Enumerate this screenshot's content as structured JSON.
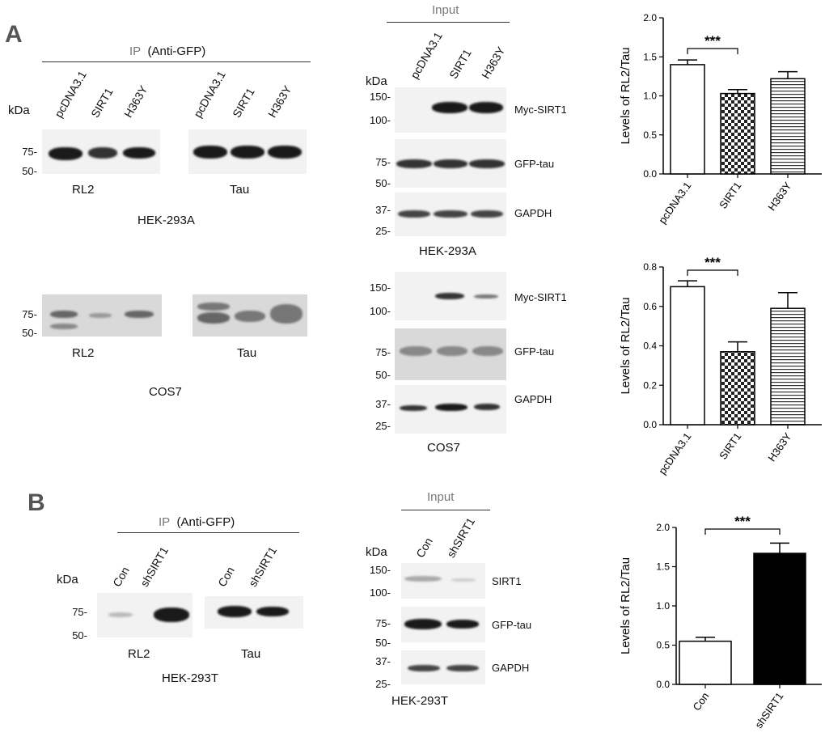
{
  "panel_A": {
    "letter": "A",
    "ip_header": "IP",
    "ip_antibody": "(Anti-GFP)",
    "kda": "kDa",
    "lanes": [
      "pcDNA3.1",
      "SIRT1",
      "H363Y"
    ],
    "blot_rl2": "RL2",
    "blot_tau": "Tau",
    "cell_hek": "HEK-293A",
    "cell_cos": "COS7",
    "mw_75": "75-",
    "mw_50": "50-",
    "input_header": "Input",
    "input_mw": {
      "m150": "150-",
      "m100": "100-",
      "m75": "75-",
      "m50": "50-",
      "m37": "37-",
      "m25": "25-"
    },
    "input_labels": {
      "myc": "Myc-SIRT1",
      "gfp": "GFP-tau",
      "gapdh": "GAPDH"
    }
  },
  "panel_B": {
    "letter": "B",
    "ip_header": "IP",
    "ip_antibody": "(Anti-GFP)",
    "kda": "kDa",
    "lanes": [
      "Con",
      "shSIRT1"
    ],
    "blot_rl2": "RL2",
    "blot_tau": "Tau",
    "cell": "HEK-293T",
    "mw_75": "75-",
    "mw_50": "50-",
    "input_header": "Input",
    "input_mw": {
      "m150": "150-",
      "m100": "100-",
      "m75": "75-",
      "m50": "50-",
      "m37": "37-",
      "m25": "25-"
    },
    "input_labels": {
      "sirt1": "SIRT1",
      "gfp": "GFP-tau",
      "gapdh": "GAPDH"
    }
  },
  "chart_data": [
    {
      "type": "bar",
      "categories": [
        "pcDNA3.1",
        "SIRT1",
        "H363Y"
      ],
      "values": [
        1.4,
        1.03,
        1.22
      ],
      "errors": [
        0.06,
        0.05,
        0.09
      ],
      "ylabel": "Levels of RL2/Tau",
      "ylim": [
        0,
        2.0
      ],
      "yticks": [
        "0.0",
        "0.5",
        "1.0",
        "1.5",
        "2.0"
      ],
      "significance": "***",
      "fills": [
        "white",
        "checker",
        "hstripes"
      ]
    },
    {
      "type": "bar",
      "categories": [
        "pcDNA3.1",
        "SIRT1",
        "H363Y"
      ],
      "values": [
        0.7,
        0.37,
        0.59
      ],
      "errors": [
        0.03,
        0.05,
        0.08
      ],
      "ylabel": "Levels of RL2/Tau",
      "ylim": [
        0,
        0.8
      ],
      "yticks": [
        "0.0",
        "0.2",
        "0.4",
        "0.6",
        "0.8"
      ],
      "significance": "***",
      "fills": [
        "white",
        "checker",
        "hstripes"
      ]
    },
    {
      "type": "bar",
      "categories": [
        "Con",
        "shSIRT1"
      ],
      "values": [
        0.55,
        1.67
      ],
      "errors": [
        0.05,
        0.13
      ],
      "ylabel": "Levels of RL2/Tau",
      "ylim": [
        0,
        2.0
      ],
      "yticks": [
        "0.0",
        "0.5",
        "1.0",
        "1.5",
        "2.0"
      ],
      "significance": "***",
      "fills": [
        "white",
        "black"
      ]
    }
  ]
}
